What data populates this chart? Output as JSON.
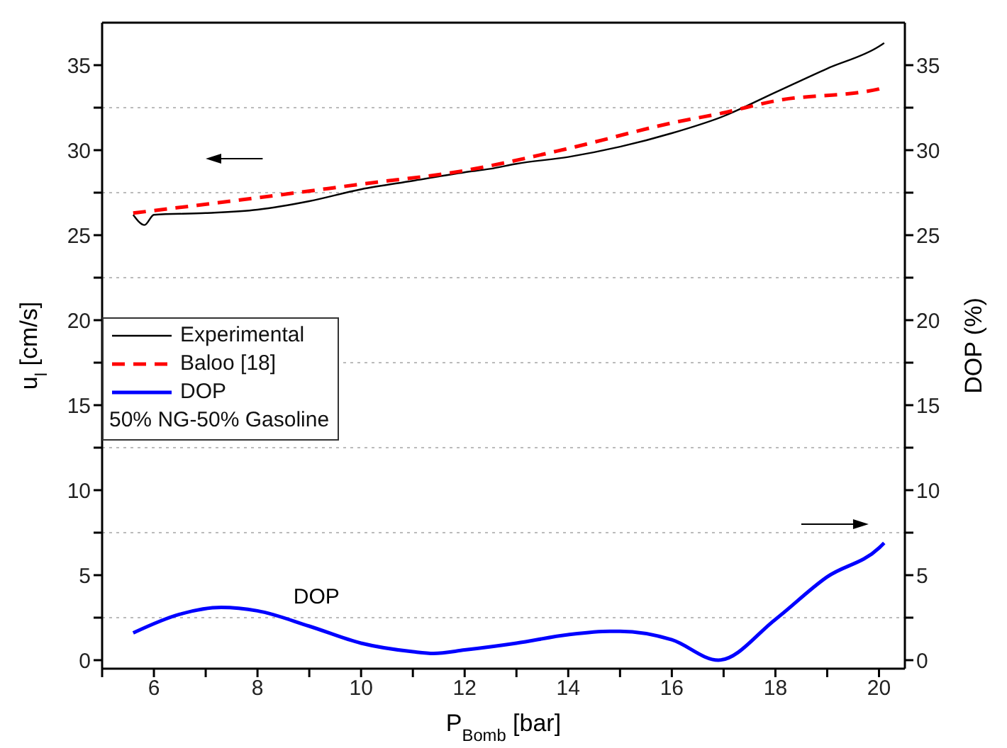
{
  "chart_data": {
    "type": "line",
    "xlabel": "P$_{Bomb}$ [bar]",
    "ylabel": "u$_{l}$ [cm/s]",
    "y2label": "DOP (%)",
    "xlim": [
      5,
      20.5
    ],
    "ylim": [
      -0.5,
      37.5
    ],
    "y2lim": [
      -0.5,
      37.5
    ],
    "xticks": [
      {
        "value": 5,
        "label": null
      },
      6,
      {
        "value": 7,
        "label": null
      },
      8,
      {
        "value": 9,
        "label": null
      },
      10,
      {
        "value": 11,
        "label": null
      },
      12,
      {
        "value": 13,
        "label": null
      },
      14,
      {
        "value": 15,
        "label": null
      },
      16,
      {
        "value": 17,
        "label": null
      },
      18,
      {
        "value": 19,
        "label": null
      },
      20
    ],
    "yticks": [
      0,
      {
        "value": 2.5,
        "label": null
      },
      5,
      {
        "value": 7.5,
        "label": null
      },
      10,
      {
        "value": 12.5,
        "label": null
      },
      15,
      {
        "value": 17.5,
        "label": null
      },
      20,
      {
        "value": 22.5,
        "label": null
      },
      25,
      {
        "value": 27.5,
        "label": null
      },
      30,
      {
        "value": 32.5,
        "label": null
      },
      35
    ],
    "y2ticks": [
      0,
      {
        "value": 2.5,
        "label": null
      },
      5,
      {
        "value": 7.5,
        "label": null
      },
      10,
      {
        "value": 12.5,
        "label": null
      },
      15,
      {
        "value": 17.5,
        "label": null
      },
      20,
      {
        "value": 22.5,
        "label": null
      },
      25,
      {
        "value": 27.5,
        "label": null
      },
      30,
      {
        "value": 32.5,
        "label": null
      },
      35
    ],
    "grid": "y",
    "legend": "center left",
    "marker": "none",
    "annotations": [
      "50% NG-50% Gasoline",
      "DOP"
    ],
    "series": [
      {
        "name": "Experimental",
        "color": "#000000",
        "line_style": "solid",
        "x": [
          5.6,
          5.82,
          6.0,
          7.0,
          8.0,
          9.0,
          10.0,
          11.0,
          12.0,
          12.49,
          13.0,
          14.0,
          15.0,
          16.0,
          17.0,
          18.0,
          19.0,
          20.0,
          20.1
        ],
        "values": [
          26.2,
          25.6,
          26.2,
          26.3,
          26.5,
          27.0,
          27.7,
          28.2,
          28.7,
          28.9,
          29.2,
          29.6,
          30.2,
          31.0,
          32.0,
          33.4,
          34.8,
          36.1,
          36.3
        ]
      },
      {
        "name": "Baloo [18]",
        "color": "#ff0000",
        "line_style": "dashed",
        "x": [
          5.6,
          8.0,
          10.0,
          12.0,
          14.0,
          16.0,
          17.0,
          18.0,
          20.0,
          20.1
        ],
        "values": [
          26.3,
          27.2,
          28.0,
          28.8,
          30.1,
          31.6,
          32.2,
          32.9,
          33.6,
          33.8
        ]
      },
      {
        "name": "DOP",
        "color": "#0000ff",
        "line_style": "solid",
        "axis": "y2",
        "x": [
          5.6,
          6.5,
          7.3,
          8.0,
          9.0,
          10.0,
          11.0,
          11.4,
          12.0,
          13.0,
          14.0,
          14.8,
          15.0,
          16.0,
          16.9,
          18.0,
          19.0,
          20.0,
          20.1
        ],
        "values": [
          1.6,
          2.7,
          3.1,
          2.9,
          2.0,
          1.0,
          0.5,
          0.4,
          0.6,
          1.0,
          1.5,
          1.7,
          1.7,
          1.2,
          0.0,
          2.4,
          4.9,
          6.6,
          6.9
        ]
      }
    ]
  }
}
